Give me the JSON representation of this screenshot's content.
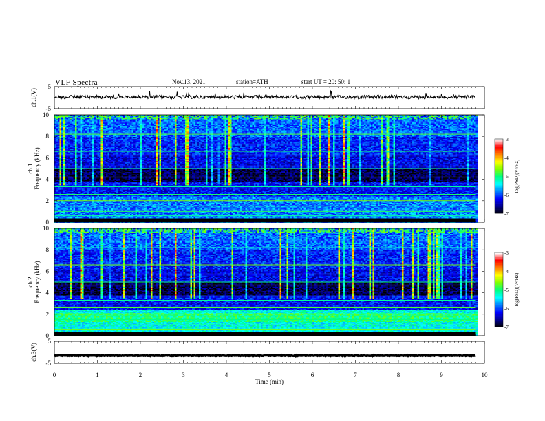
{
  "header": {
    "title": "VLF Spectra",
    "date": "Nov.13, 2021",
    "station": "station=ATH",
    "start": "start UT =  20: 50: 1"
  },
  "chart_data": [
    {
      "type": "line",
      "name": "ch1-waveform",
      "ylabel": "ch.1(V)",
      "ylim": [
        -5,
        5
      ],
      "yticks": [
        5,
        -5
      ],
      "xlim": [
        0,
        10
      ],
      "baseline_value": 0.3
    },
    {
      "type": "heatmap",
      "name": "ch1-spectrogram",
      "ylabel": "ch.1\nFrequency (kHz)",
      "ylabel_line1": "ch.1",
      "ylabel_line2": "Frequency (kHz)",
      "ylim": [
        0,
        10
      ],
      "yticks": [
        0,
        2,
        4,
        6,
        8,
        10
      ],
      "data_xlim": [
        0,
        9.8
      ],
      "colorbar": {
        "label": "log(PSD)(V²/Hz)",
        "range": [
          -7,
          -3
        ],
        "ticks": [
          -3,
          -4,
          -5,
          -6,
          -7
        ]
      }
    },
    {
      "type": "heatmap",
      "name": "ch2-spectrogram",
      "ylabel": "ch.2\nFrequency (kHz)",
      "ylabel_line1": "ch.2",
      "ylabel_line2": "Frequency (kHz)",
      "ylim": [
        0,
        10
      ],
      "yticks": [
        0,
        2,
        4,
        6,
        8,
        10
      ],
      "data_xlim": [
        0,
        9.8
      ],
      "colorbar": {
        "label": "log(PSD)(V²/Hz)",
        "range": [
          -7,
          -3
        ],
        "ticks": [
          -3,
          -4,
          -5,
          -6,
          -7
        ]
      }
    },
    {
      "type": "line",
      "name": "ch3-waveform",
      "ylabel": "ch.3(V)",
      "ylim": [
        -5,
        5
      ],
      "yticks": [
        5,
        -5
      ],
      "xlim": [
        0,
        10
      ],
      "baseline_value": -1.5,
      "xlabel": "Time (min)",
      "xticks": [
        0,
        1,
        2,
        3,
        4,
        5,
        6,
        7,
        8,
        9,
        10
      ]
    }
  ],
  "colors": {
    "background": "#ffffff",
    "axis": "#000000",
    "colormap": [
      "#000000",
      "#00008b",
      "#0000ff",
      "#0080ff",
      "#00ffff",
      "#00ff80",
      "#80ff00",
      "#ffff00",
      "#ff8000",
      "#ff0000",
      "#ffffff"
    ]
  }
}
